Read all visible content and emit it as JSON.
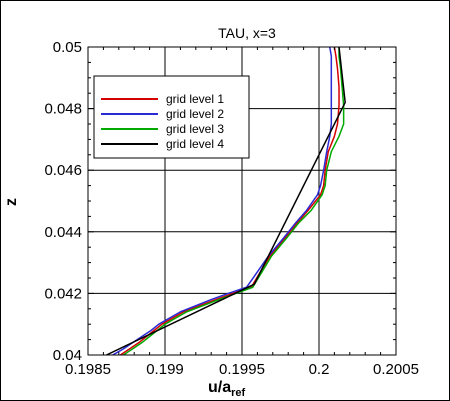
{
  "chart_data": {
    "type": "line",
    "title": "TAU, x=3",
    "xlabel": "u/a",
    "xlabel_sub": "ref",
    "ylabel": "z",
    "xlim": [
      0.1985,
      0.2005
    ],
    "ylim": [
      0.04,
      0.05
    ],
    "xticks": [
      0.1985,
      0.199,
      0.1995,
      0.2,
      0.2005
    ],
    "xtick_labels": [
      "0.1985",
      "0.199",
      "0.1995",
      "0.2",
      "0.2005"
    ],
    "yticks": [
      0.04,
      0.042,
      0.044,
      0.046,
      0.048,
      0.05
    ],
    "ytick_labels": [
      "0.04",
      "0.042",
      "0.044",
      "0.046",
      "0.048",
      "0.05"
    ],
    "grid": true,
    "legend_position": "upper-left",
    "series": [
      {
        "name": "grid level 1",
        "color": "#d40000",
        "points": [
          [
            0.19871,
            0.04
          ],
          [
            0.19877,
            0.0402
          ],
          [
            0.19883,
            0.0404
          ],
          [
            0.19888,
            0.0406
          ],
          [
            0.19893,
            0.0408
          ],
          [
            0.19898,
            0.041
          ],
          [
            0.19912,
            0.0414
          ],
          [
            0.19933,
            0.0418
          ],
          [
            0.19944,
            0.042
          ],
          [
            0.19956,
            0.0422
          ],
          [
            0.19968,
            0.0432
          ],
          [
            0.19978,
            0.0438
          ],
          [
            0.19986,
            0.0443
          ],
          [
            0.19993,
            0.0447
          ],
          [
            0.20001,
            0.0452
          ],
          [
            0.20003,
            0.0455
          ],
          [
            0.20004,
            0.046
          ],
          [
            0.20006,
            0.0466
          ],
          [
            0.2001,
            0.0471
          ],
          [
            0.20012,
            0.0475
          ],
          [
            0.20013,
            0.0481
          ],
          [
            0.20013,
            0.0487
          ],
          [
            0.20012,
            0.0493
          ],
          [
            0.20011,
            0.0497
          ],
          [
            0.2001,
            0.05
          ]
        ]
      },
      {
        "name": "grid level 2",
        "color": "#2a2ad4",
        "points": [
          [
            0.19866,
            0.04
          ],
          [
            0.19873,
            0.0402
          ],
          [
            0.19879,
            0.0404
          ],
          [
            0.19885,
            0.0406
          ],
          [
            0.19891,
            0.0408
          ],
          [
            0.19896,
            0.041
          ],
          [
            0.1991,
            0.0414
          ],
          [
            0.1993,
            0.0418
          ],
          [
            0.19941,
            0.042
          ],
          [
            0.19953,
            0.0422
          ],
          [
            0.19967,
            0.0432
          ],
          [
            0.19977,
            0.0438
          ],
          [
            0.19985,
            0.0443
          ],
          [
            0.19992,
            0.0447
          ],
          [
            0.19999,
            0.0452
          ],
          [
            0.20001,
            0.0455
          ],
          [
            0.20003,
            0.046
          ],
          [
            0.20005,
            0.0466
          ],
          [
            0.20007,
            0.0471
          ],
          [
            0.20008,
            0.0475
          ],
          [
            0.20008,
            0.0481
          ],
          [
            0.20008,
            0.0487
          ],
          [
            0.20008,
            0.0493
          ],
          [
            0.20008,
            0.0497
          ],
          [
            0.20007,
            0.05
          ]
        ]
      },
      {
        "name": "grid level 3",
        "color": "#00aa00",
        "points": [
          [
            0.19873,
            0.04
          ],
          [
            0.19879,
            0.0402
          ],
          [
            0.19885,
            0.0404
          ],
          [
            0.1989,
            0.0406
          ],
          [
            0.19895,
            0.0408
          ],
          [
            0.199,
            0.041
          ],
          [
            0.19914,
            0.0414
          ],
          [
            0.19935,
            0.0418
          ],
          [
            0.19946,
            0.042
          ],
          [
            0.19957,
            0.0422
          ],
          [
            0.19969,
            0.0432
          ],
          [
            0.19979,
            0.0438
          ],
          [
            0.19987,
            0.0443
          ],
          [
            0.19995,
            0.0447
          ],
          [
            0.20002,
            0.0452
          ],
          [
            0.20004,
            0.0455
          ],
          [
            0.20005,
            0.046
          ],
          [
            0.20008,
            0.0466
          ],
          [
            0.20013,
            0.0471
          ],
          [
            0.20016,
            0.0475
          ],
          [
            0.20016,
            0.0481
          ],
          [
            0.20015,
            0.0487
          ],
          [
            0.20014,
            0.0493
          ],
          [
            0.20013,
            0.0497
          ],
          [
            0.20013,
            0.05
          ]
        ]
      },
      {
        "name": "grid level 4",
        "color": "#000000",
        "points": [
          [
            0.19862,
            0.04
          ],
          [
            0.19958,
            0.0423
          ],
          [
            0.20017,
            0.0482
          ],
          [
            0.20013,
            0.05
          ]
        ]
      }
    ]
  }
}
